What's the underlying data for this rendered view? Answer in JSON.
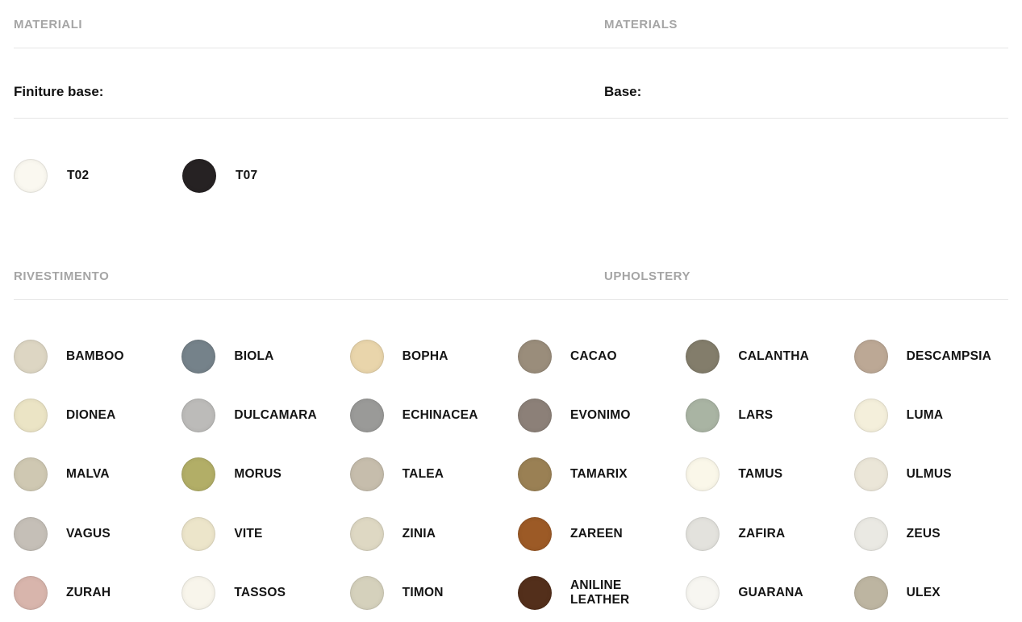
{
  "sections": {
    "materials": {
      "heading_it": "MATERIALI",
      "heading_en": "MATERIALS",
      "base_label_it": "Finiture base:",
      "base_label_en": "Base:",
      "base_finishes": [
        {
          "code": "T02",
          "color": "#FAF8F0",
          "texture": "plain"
        },
        {
          "code": "T07",
          "color": "#262223",
          "texture": "plain"
        }
      ]
    },
    "upholstery": {
      "heading_it": "RIVESTIMENTO",
      "heading_en": "UPHOLSTERY",
      "swatches": [
        {
          "name": "BAMBOO",
          "color": "#DDD6C3",
          "texture": "speckle-light"
        },
        {
          "name": "BIOLA",
          "color": "#75828A",
          "texture": "plain"
        },
        {
          "name": "BOPHA",
          "color": "#E9D5AB",
          "texture": "plain"
        },
        {
          "name": "CACAO",
          "color": "#9A8D7B",
          "texture": "weave"
        },
        {
          "name": "CALANTHA",
          "color": "#837D6B",
          "texture": "plain"
        },
        {
          "name": "DESCAMPSIA",
          "color": "#BCA895",
          "texture": "plain"
        },
        {
          "name": "DIONEA",
          "color": "#EBE4C5",
          "texture": "speckle-light"
        },
        {
          "name": "DULCAMARA",
          "color": "#BCBBB9",
          "texture": "plain"
        },
        {
          "name": "ECHINACEA",
          "color": "#9A9A98",
          "texture": "speckle"
        },
        {
          "name": "EVONIMO",
          "color": "#8C8078",
          "texture": "stripes"
        },
        {
          "name": "LARS",
          "color": "#A9B4A3",
          "texture": "speckle-light"
        },
        {
          "name": "LUMA",
          "color": "#F4EFDB",
          "texture": "plain"
        },
        {
          "name": "MALVA",
          "color": "#CFC8B2",
          "texture": "plain"
        },
        {
          "name": "MORUS",
          "color": "#B2AE67",
          "texture": "speckle"
        },
        {
          "name": "TALEA",
          "color": "#C6BDAC",
          "texture": "stripes"
        },
        {
          "name": "TAMARIX",
          "color": "#9A8054",
          "texture": "plain"
        },
        {
          "name": "TAMUS",
          "color": "#FAF7E9",
          "texture": "plain"
        },
        {
          "name": "ULMUS",
          "color": "#EBE6D8",
          "texture": "plain"
        },
        {
          "name": "VAGUS",
          "color": "#C5BFB7",
          "texture": "plain"
        },
        {
          "name": "VITE",
          "color": "#ECE5CA",
          "texture": "plain"
        },
        {
          "name": "ZINIA",
          "color": "#DED8C3",
          "texture": "plain"
        },
        {
          "name": "ZAREEN",
          "color": "#9C5A26",
          "texture": "plain"
        },
        {
          "name": "ZAFIRA",
          "color": "#E3E2DD",
          "texture": "plain"
        },
        {
          "name": "ZEUS",
          "color": "#EAE9E3",
          "texture": "plain"
        },
        {
          "name": "ZURAH",
          "color": "#D8B5AC",
          "texture": "plain"
        },
        {
          "name": "TASSOS",
          "color": "#F8F5EB",
          "texture": "plain"
        },
        {
          "name": "TIMON",
          "color": "#D5D1BC",
          "texture": "mottle"
        },
        {
          "name": "ANILINE LEATHER",
          "color": "#532F1B",
          "texture": "plain"
        },
        {
          "name": "GUARANA",
          "color": "#F7F6F1",
          "texture": "plain"
        },
        {
          "name": "ULEX",
          "color": "#BDB5A1",
          "texture": "plain"
        }
      ]
    }
  }
}
